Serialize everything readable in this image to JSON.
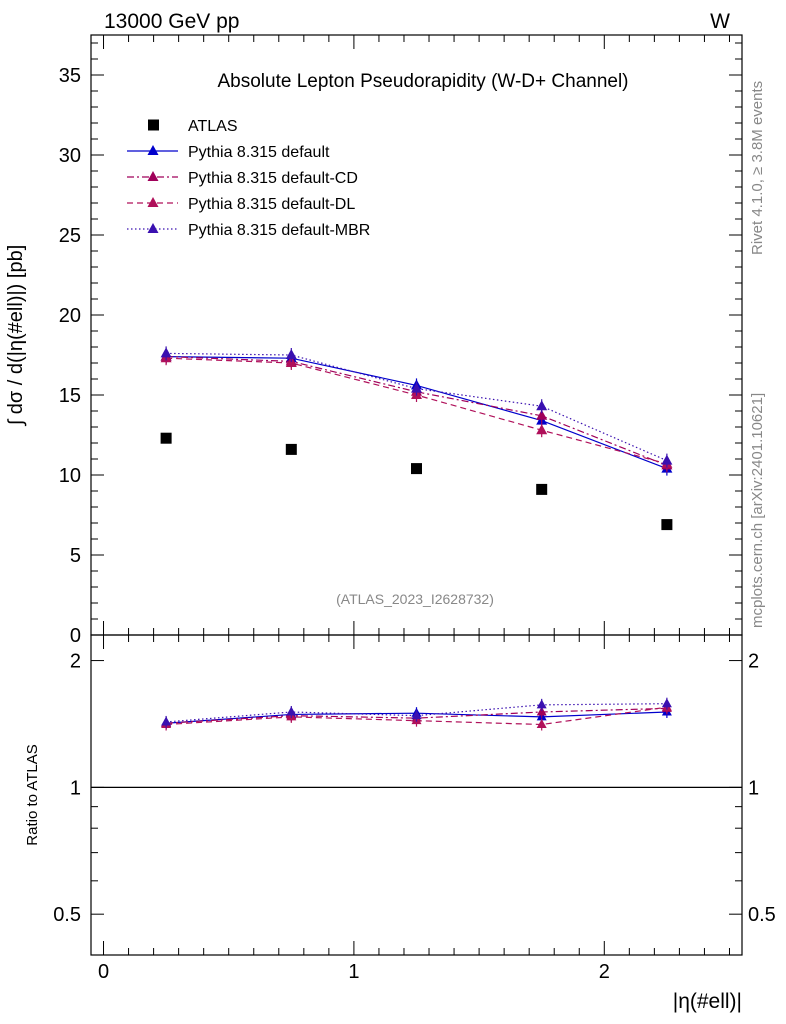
{
  "header": {
    "left": "13000 GeV pp",
    "right": "W"
  },
  "side_text": {
    "rivet": "Rivet 4.1.0, ≥ 3.8M events",
    "mcplots": "mcplots.cern.ch [arXiv:2401.10621]"
  },
  "chart_data": [
    {
      "type": "scatter",
      "title": "Absolute Lepton Pseudorapidity (W-D+ Channel)",
      "watermark": "(ATLAS_2023_I2628732)",
      "xlabel": "|η(#ell)|",
      "ylabel": "∫ dσ / d(|η(#ell)|) [pb]",
      "xlim": [
        -0.05,
        2.55
      ],
      "ylim": [
        0,
        37.5
      ],
      "y_ticks": [
        0,
        5,
        10,
        15,
        20,
        25,
        30,
        35
      ],
      "x_ticks": [
        0,
        1,
        2
      ],
      "x": [
        0.25,
        0.75,
        1.25,
        1.75,
        2.25
      ],
      "series": [
        {
          "name": "ATLAS",
          "marker": "square",
          "color": "#000000",
          "values": [
            12.3,
            11.6,
            10.4,
            9.1,
            6.9
          ]
        },
        {
          "name": "Pythia 8.315 default",
          "style": "solid",
          "color": "#0000cc",
          "values": [
            17.4,
            17.3,
            15.6,
            13.4,
            10.4
          ]
        },
        {
          "name": "Pythia 8.315 default-CD",
          "style": "dashdot",
          "color": "#a0005a",
          "values": [
            17.4,
            17.1,
            15.2,
            13.7,
            10.6
          ]
        },
        {
          "name": "Pythia 8.315 default-DL",
          "style": "dashed",
          "color": "#b0105a",
          "values": [
            17.3,
            17.0,
            15.0,
            12.8,
            10.7
          ]
        },
        {
          "name": "Pythia 8.315 default-MBR",
          "style": "dotted",
          "color": "#3a10b0",
          "values": [
            17.6,
            17.5,
            15.4,
            14.3,
            10.9
          ]
        }
      ]
    },
    {
      "type": "line",
      "ylabel": "Ratio to ATLAS",
      "yscale": "log",
      "ylim": [
        0.4,
        2.3
      ],
      "y_ticks": [
        0.5,
        1,
        2
      ],
      "y_tick_labels": [
        "0.5",
        "1",
        "2"
      ],
      "reference_line": 1,
      "x": [
        0.25,
        0.75,
        1.25,
        1.75,
        2.25
      ],
      "series": [
        {
          "name": "Pythia 8.315 default",
          "values": [
            1.42,
            1.49,
            1.5,
            1.47,
            1.51
          ]
        },
        {
          "name": "Pythia 8.315 default-CD",
          "values": [
            1.42,
            1.48,
            1.46,
            1.51,
            1.54
          ]
        },
        {
          "name": "Pythia 8.315 default-DL",
          "values": [
            1.41,
            1.47,
            1.44,
            1.41,
            1.55
          ]
        },
        {
          "name": "Pythia 8.315 default-MBR",
          "values": [
            1.43,
            1.51,
            1.48,
            1.57,
            1.58
          ]
        }
      ]
    }
  ]
}
